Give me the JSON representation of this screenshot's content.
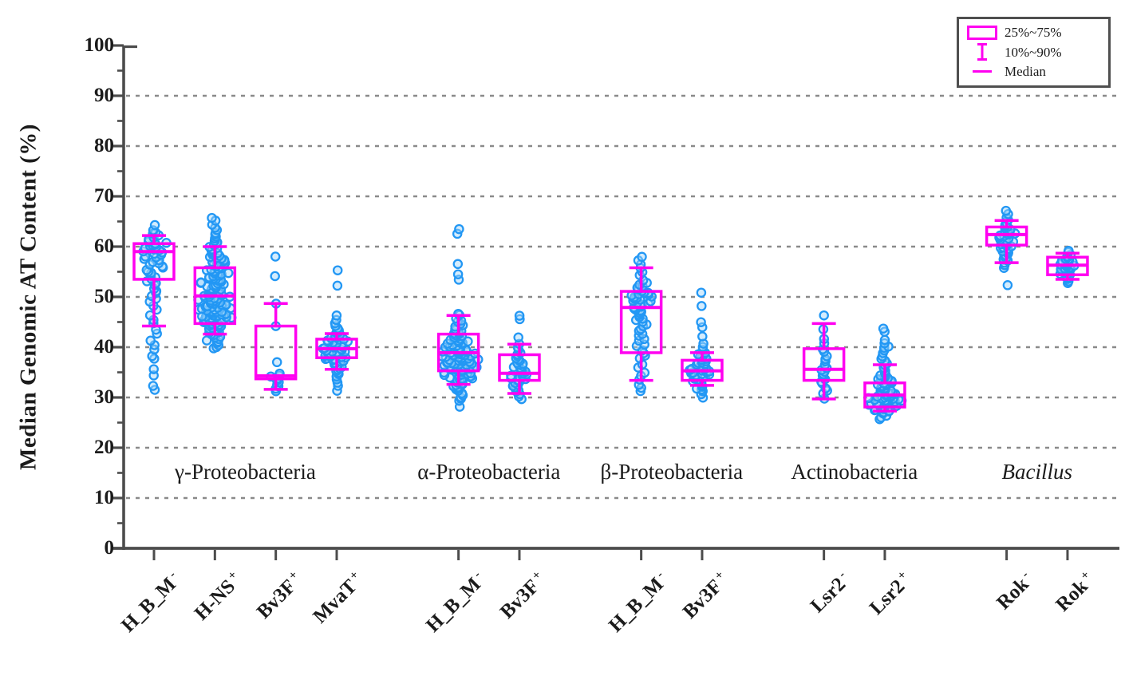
{
  "chart_data": {
    "type": "box-jitter",
    "title": "",
    "ylabel": "Median Genomic AT Content (%)",
    "xlabel": "",
    "ylim": [
      0,
      100
    ],
    "y_major_ticks": [
      0,
      10,
      20,
      30,
      40,
      50,
      60,
      70,
      80,
      90,
      100
    ],
    "y_minor_ticks": [
      5,
      15,
      25,
      35,
      45,
      55,
      65,
      75,
      85,
      95
    ],
    "gridlines": [
      10,
      20,
      30,
      40,
      50,
      60,
      70,
      80,
      90
    ],
    "grid_style": "dashed",
    "legend": [
      {
        "symbol": "box",
        "label": "25%~75%"
      },
      {
        "symbol": "whisker",
        "label": "10%~90%"
      },
      {
        "symbol": "median",
        "label": "Median"
      }
    ],
    "colors": {
      "box": "#ff00f0",
      "dot_stroke": "#2297f4",
      "dot_fill": "#9fd4fb",
      "grid": "#8a8a8a",
      "axis": "#4c4c4c",
      "text": "#1b1b1b"
    },
    "groups": [
      {
        "label": "γ-Proteobacteria",
        "italic": false
      },
      {
        "label": "α-Proteobacteria",
        "italic": false
      },
      {
        "label": "β-Proteobacteria",
        "italic": false
      },
      {
        "label": "Actinobacteria",
        "italic": false
      },
      {
        "label": "Bacillus",
        "italic": true
      }
    ],
    "categories": [
      {
        "name": "H_B_M",
        "sign": "-",
        "group": 0,
        "slot": 0,
        "box": {
          "p10": 44.2,
          "q1": 53.5,
          "median": 59.0,
          "q3": 60.6,
          "p90": 62.2
        },
        "bands": [
          [
            31,
            32.5,
            2
          ],
          [
            34,
            36,
            2
          ],
          [
            37,
            40,
            3
          ],
          [
            40,
            44,
            4
          ],
          [
            44,
            47,
            3
          ],
          [
            47,
            50,
            4
          ],
          [
            50,
            53,
            6
          ],
          [
            53,
            56,
            8
          ],
          [
            56,
            59,
            11
          ],
          [
            59,
            61,
            12
          ],
          [
            61,
            63,
            6
          ],
          [
            63,
            65,
            2
          ]
        ]
      },
      {
        "name": "H-NS",
        "sign": "+",
        "group": 0,
        "slot": 1,
        "box": {
          "p10": 42.6,
          "q1": 44.7,
          "median": 50.2,
          "q3": 55.8,
          "p90": 60.0
        },
        "bands": [
          [
            39.5,
            41,
            4
          ],
          [
            41,
            43,
            8
          ],
          [
            43,
            45,
            16
          ],
          [
            45,
            47,
            22
          ],
          [
            47,
            49,
            18
          ],
          [
            49,
            51,
            16
          ],
          [
            51,
            53,
            14
          ],
          [
            53,
            55,
            14
          ],
          [
            55,
            57,
            12
          ],
          [
            57,
            59,
            9
          ],
          [
            59,
            61,
            7
          ],
          [
            61,
            63,
            5
          ],
          [
            63,
            66,
            5
          ]
        ]
      },
      {
        "name": "Bv3F",
        "sign": "+",
        "group": 0,
        "slot": 2,
        "box": {
          "p10": 31.6,
          "q1": 33.7,
          "median": 34.3,
          "q3": 44.2,
          "p90": 48.7
        },
        "bands": [
          [
            31,
            32,
            2
          ],
          [
            32,
            33.5,
            4
          ],
          [
            33.5,
            35,
            4
          ],
          [
            36.5,
            37.5,
            1
          ],
          [
            43.5,
            44.5,
            1
          ],
          [
            48,
            49,
            1
          ],
          [
            53.5,
            54.5,
            1
          ],
          [
            57.5,
            58.5,
            1
          ]
        ]
      },
      {
        "name": "MvaT",
        "sign": "+",
        "group": 0,
        "slot": 3,
        "box": {
          "p10": 35.6,
          "q1": 37.9,
          "median": 39.7,
          "q3": 41.6,
          "p90": 42.7
        },
        "bands": [
          [
            31,
            32.5,
            2
          ],
          [
            32.5,
            34.5,
            3
          ],
          [
            34.5,
            36,
            5
          ],
          [
            36,
            37.5,
            9
          ],
          [
            37.5,
            39,
            13
          ],
          [
            39,
            40.5,
            14
          ],
          [
            40.5,
            42,
            10
          ],
          [
            42,
            43.5,
            5
          ],
          [
            43.5,
            45,
            3
          ],
          [
            45,
            47,
            2
          ],
          [
            52,
            53,
            1
          ],
          [
            54.5,
            55.5,
            1
          ]
        ]
      },
      {
        "name": "H_B_M",
        "sign": "-",
        "group": 1,
        "slot": 5,
        "box": {
          "p10": 32.6,
          "q1": 35.3,
          "median": 38.9,
          "q3": 42.6,
          "p90": 46.3
        },
        "bands": [
          [
            28,
            29.5,
            2
          ],
          [
            29.5,
            31.5,
            5
          ],
          [
            31.5,
            33.5,
            10
          ],
          [
            33.5,
            35.5,
            16
          ],
          [
            35.5,
            37.5,
            22
          ],
          [
            37.5,
            39.5,
            20
          ],
          [
            39.5,
            41.5,
            14
          ],
          [
            41.5,
            43.5,
            10
          ],
          [
            43.5,
            45.5,
            6
          ],
          [
            45.5,
            47,
            3
          ],
          [
            53,
            55,
            2
          ],
          [
            56,
            58,
            1
          ],
          [
            62,
            63,
            1
          ],
          [
            63,
            64,
            1
          ]
        ]
      },
      {
        "name": "Bv3F",
        "sign": "+",
        "group": 1,
        "slot": 6,
        "box": {
          "p10": 30.8,
          "q1": 33.4,
          "median": 34.8,
          "q3": 38.5,
          "p90": 40.6
        },
        "bands": [
          [
            29.5,
            31,
            3
          ],
          [
            31,
            33,
            7
          ],
          [
            33,
            35,
            11
          ],
          [
            35,
            37,
            10
          ],
          [
            37,
            39,
            6
          ],
          [
            39,
            41,
            3
          ],
          [
            41,
            43,
            1
          ],
          [
            45,
            47,
            2
          ]
        ]
      },
      {
        "name": "H_B_M",
        "sign": "-",
        "group": 2,
        "slot": 8,
        "box": {
          "p10": 33.4,
          "q1": 38.9,
          "median": 47.9,
          "q3": 51.1,
          "p90": 55.8
        },
        "bands": [
          [
            31,
            33,
            3
          ],
          [
            33,
            35.5,
            3
          ],
          [
            35.5,
            38,
            3
          ],
          [
            38,
            41,
            5
          ],
          [
            41,
            44,
            6
          ],
          [
            44,
            47,
            8
          ],
          [
            47,
            49,
            10
          ],
          [
            49,
            51,
            12
          ],
          [
            51,
            53,
            6
          ],
          [
            53,
            55.5,
            3
          ],
          [
            55.5,
            58.5,
            4
          ]
        ]
      },
      {
        "name": "Bv3F",
        "sign": "+",
        "group": 2,
        "slot": 9,
        "box": {
          "p10": 32.4,
          "q1": 33.4,
          "median": 35.3,
          "q3": 37.4,
          "p90": 38.9
        },
        "bands": [
          [
            29.5,
            31,
            2
          ],
          [
            31,
            33,
            6
          ],
          [
            33,
            34.5,
            10
          ],
          [
            34.5,
            36,
            12
          ],
          [
            36,
            37.5,
            8
          ],
          [
            37.5,
            39,
            5
          ],
          [
            39,
            41,
            3
          ],
          [
            41.5,
            43,
            1
          ],
          [
            43.5,
            45.5,
            2
          ],
          [
            47.5,
            49,
            1
          ],
          [
            50.5,
            52,
            1
          ]
        ]
      },
      {
        "name": "Lsr2",
        "sign": "-",
        "group": 3,
        "slot": 11,
        "box": {
          "p10": 29.7,
          "q1": 33.4,
          "median": 35.6,
          "q3": 39.7,
          "p90": 44.7
        },
        "bands": [
          [
            29.5,
            31,
            2
          ],
          [
            31,
            33,
            3
          ],
          [
            33,
            34.5,
            4
          ],
          [
            34.5,
            36,
            4
          ],
          [
            36,
            38,
            3
          ],
          [
            38,
            40,
            3
          ],
          [
            40,
            42,
            2
          ],
          [
            42,
            44.5,
            1
          ],
          [
            46,
            47,
            1
          ]
        ]
      },
      {
        "name": "Lsr2",
        "sign": "+",
        "group": 3,
        "slot": 12,
        "box": {
          "p10": 27.3,
          "q1": 28.1,
          "median": 30.5,
          "q3": 32.9,
          "p90": 36.5
        },
        "bands": [
          [
            25.5,
            27,
            4
          ],
          [
            27,
            28.5,
            12
          ],
          [
            28.5,
            30,
            20
          ],
          [
            30,
            31.5,
            16
          ],
          [
            31.5,
            33,
            12
          ],
          [
            33,
            34.5,
            8
          ],
          [
            34.5,
            36.5,
            6
          ],
          [
            36.5,
            38.5,
            4
          ],
          [
            38.5,
            40.5,
            4
          ],
          [
            40.5,
            42,
            2
          ],
          [
            42.5,
            44,
            2
          ]
        ]
      },
      {
        "name": "Rok",
        "sign": "-",
        "group": 4,
        "slot": 14,
        "box": {
          "p10": 56.8,
          "q1": 60.3,
          "median": 62.4,
          "q3": 63.9,
          "p90": 65.2
        },
        "bands": [
          [
            52,
            53,
            1
          ],
          [
            55.5,
            57,
            3
          ],
          [
            57,
            58.5,
            5
          ],
          [
            58.5,
            60,
            8
          ],
          [
            60,
            61.5,
            10
          ],
          [
            61.5,
            63,
            9
          ],
          [
            63,
            64.5,
            6
          ],
          [
            64.5,
            66,
            3
          ],
          [
            66,
            67.5,
            2
          ]
        ]
      },
      {
        "name": "Rok",
        "sign": "+",
        "group": 4,
        "slot": 15,
        "box": {
          "p10": 53.5,
          "q1": 54.4,
          "median": 56.3,
          "q3": 57.9,
          "p90": 58.7
        },
        "bands": [
          [
            52.5,
            53.5,
            2
          ],
          [
            53.5,
            54.5,
            5
          ],
          [
            54.5,
            55.5,
            8
          ],
          [
            55.5,
            56.5,
            9
          ],
          [
            56.5,
            57.5,
            7
          ],
          [
            57.5,
            58.5,
            4
          ],
          [
            58.5,
            59.5,
            2
          ]
        ]
      }
    ]
  }
}
